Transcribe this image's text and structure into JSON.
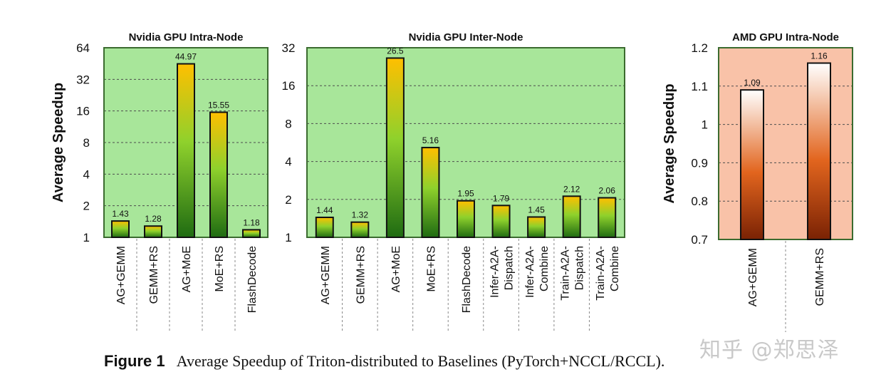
{
  "chart_data": [
    {
      "type": "bar",
      "title": "Nvidia GPU Intra-Node",
      "ylabel": "Average Speedup",
      "yscale": "log2",
      "ylim": [
        1,
        64
      ],
      "yticks": [
        "1",
        "2",
        "4",
        "8",
        "16",
        "32",
        "64"
      ],
      "categories": [
        "AG+GEMM",
        "GEMM+RS",
        "AG+MoE",
        "MoE+RS",
        "FlashDecode"
      ],
      "values": [
        1.43,
        1.28,
        44.97,
        15.55,
        1.18
      ],
      "value_labels": [
        "1.43",
        "1.28",
        "44.97",
        "15.55",
        "1.18"
      ],
      "background": "#a8e69a",
      "bar_colors": [
        "#ffbf00",
        "#8fd12c",
        "#1f6b12"
      ],
      "grid": true
    },
    {
      "type": "bar",
      "title": "Nvidia GPU Inter-Node",
      "ylabel": "",
      "yscale": "log2",
      "ylim": [
        1,
        32
      ],
      "yticks": [
        "1",
        "2",
        "4",
        "8",
        "16",
        "32"
      ],
      "categories": [
        "AG+GEMM",
        "GEMM+RS",
        "AG+MoE",
        "MoE+RS",
        "FlashDecode",
        "Infer-A2A-\nDispatch",
        "Infer-A2A-\nCombine",
        "Train-A2A-\nDispatch",
        "Train-A2A-\nCombine"
      ],
      "values": [
        1.44,
        1.32,
        26.5,
        5.16,
        1.95,
        1.79,
        1.45,
        2.12,
        2.06
      ],
      "value_labels": [
        "1.44",
        "1.32",
        "26.5",
        "5.16",
        "1.95",
        "1.79",
        "1.45",
        "2.12",
        "2.06"
      ],
      "background": "#a8e69a",
      "bar_colors": [
        "#ffbf00",
        "#8fd12c",
        "#1f6b12"
      ],
      "grid": true
    },
    {
      "type": "bar",
      "title": "AMD GPU Intra-Node",
      "ylabel": "Average Speedup",
      "yscale": "linear",
      "ylim": [
        0.7,
        1.2
      ],
      "yticks": [
        "0.7",
        "0.8",
        "0.9",
        "1",
        "1.1",
        "1.2"
      ],
      "categories": [
        "AG+GEMM",
        "GEMM+RS"
      ],
      "values": [
        1.09,
        1.16
      ],
      "value_labels": [
        "1.09",
        "1.16"
      ],
      "background": "#f9c2a8",
      "bar_colors": [
        "#ffffff",
        "#e2651e",
        "#7a2204"
      ],
      "grid": true
    }
  ],
  "caption": {
    "label": "Figure 1",
    "text": "Average Speedup of Triton-distributed to Baselines (PyTorch+NCCL/RCCL)."
  },
  "watermark": "知乎 @郑思泽"
}
